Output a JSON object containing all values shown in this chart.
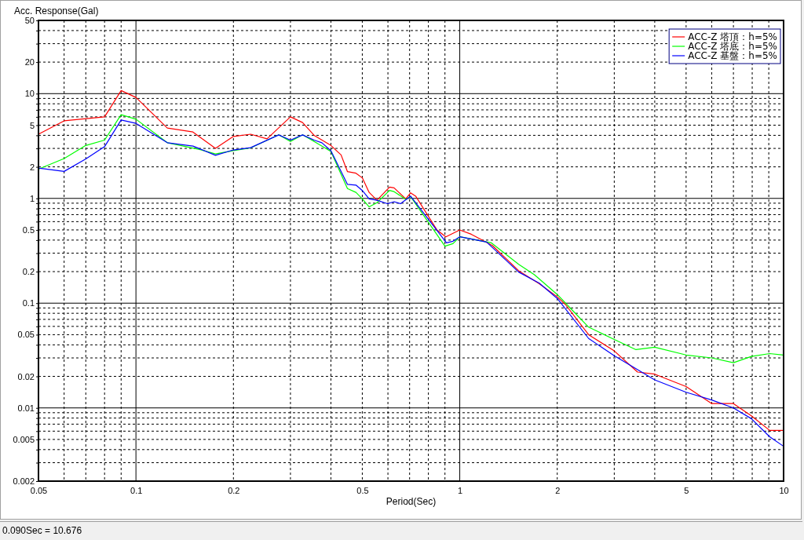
{
  "chart_data": {
    "type": "line",
    "xlabel": "Period(Sec)",
    "ylabel": "Acc. Response(Gal)",
    "log": "xy",
    "grid": true,
    "legend": "top right",
    "xlim": [
      0.05,
      10
    ],
    "ylim": [
      0.002,
      50
    ],
    "xticks": [
      0.05,
      {
        "value": 0.06,
        "label": null
      },
      {
        "value": 0.07,
        "label": null
      },
      {
        "value": 0.08,
        "label": null
      },
      {
        "value": 0.09,
        "label": null
      },
      0.1,
      0.2,
      {
        "value": 0.3,
        "label": null
      },
      {
        "value": 0.4,
        "label": null
      },
      0.5,
      {
        "value": 0.6,
        "label": null
      },
      {
        "value": 0.7,
        "label": null
      },
      {
        "value": 0.8,
        "label": null
      },
      {
        "value": 0.9,
        "label": null
      },
      1,
      2,
      {
        "value": 3,
        "label": null
      },
      {
        "value": 4,
        "label": null
      },
      5,
      {
        "value": 6,
        "label": null
      },
      {
        "value": 7,
        "label": null
      },
      {
        "value": 8,
        "label": null
      },
      {
        "value": 9,
        "label": null
      },
      10
    ],
    "yticks": [
      0.002,
      {
        "value": 0.003,
        "label": null
      },
      {
        "value": 0.004,
        "label": null
      },
      0.005,
      {
        "value": 0.006,
        "label": null
      },
      {
        "value": 0.007,
        "label": null
      },
      {
        "value": 0.008,
        "label": null
      },
      {
        "value": 0.009,
        "label": null
      },
      0.01,
      0.02,
      {
        "value": 0.03,
        "label": null
      },
      {
        "value": 0.04,
        "label": null
      },
      0.05,
      {
        "value": 0.06,
        "label": null
      },
      {
        "value": 0.07,
        "label": null
      },
      {
        "value": 0.08,
        "label": null
      },
      {
        "value": 0.09,
        "label": null
      },
      0.1,
      0.2,
      {
        "value": 0.3,
        "label": null
      },
      {
        "value": 0.4,
        "label": null
      },
      0.5,
      {
        "value": 0.6,
        "label": null
      },
      {
        "value": 0.7,
        "label": null
      },
      {
        "value": 0.8,
        "label": null
      },
      {
        "value": 0.9,
        "label": null
      },
      1,
      2,
      {
        "value": 3,
        "label": null
      },
      {
        "value": 4,
        "label": null
      },
      5,
      {
        "value": 6,
        "label": null
      },
      {
        "value": 7,
        "label": null
      },
      {
        "value": 8,
        "label": null
      },
      {
        "value": 9,
        "label": null
      },
      10,
      20,
      {
        "value": 30,
        "label": null
      },
      {
        "value": 40,
        "label": null
      },
      50
    ],
    "series": [
      {
        "name": "ACC-Z 塔頂：h=5%",
        "color": "#ff0000",
        "x": [
          0.05,
          0.06,
          0.08,
          0.09,
          0.1,
          0.125,
          0.15,
          0.176,
          0.2,
          0.226,
          0.254,
          0.3,
          0.327,
          0.355,
          0.4,
          0.43,
          0.45,
          0.478,
          0.5,
          0.525,
          0.555,
          0.607,
          0.627,
          0.681,
          0.705,
          0.731,
          0.85,
          0.906,
          1.0,
          1.085,
          1.19,
          1.26,
          1.52,
          1.76,
          2.0,
          2.12,
          2.5,
          3.0,
          3.54,
          4.0,
          5.0,
          6.0,
          7.0,
          7.95,
          9.06,
          10
        ],
        "values": [
          4.1,
          5.5,
          6.0,
          10.7,
          9.2,
          4.7,
          4.3,
          3.0,
          3.9,
          4.1,
          3.7,
          6.0,
          5.3,
          4.0,
          3.2,
          2.6,
          1.8,
          1.74,
          1.57,
          1.14,
          0.96,
          1.28,
          1.26,
          0.99,
          1.13,
          1.05,
          0.5,
          0.43,
          0.5,
          0.455,
          0.39,
          0.355,
          0.204,
          0.153,
          0.115,
          0.097,
          0.05,
          0.035,
          0.022,
          0.021,
          0.016,
          0.011,
          0.011,
          0.0084,
          0.0061,
          0.0061
        ]
      },
      {
        "name": "ACC-Z 塔底：h=5%",
        "color": "#00ff00",
        "x": [
          0.05,
          0.06,
          0.07,
          0.08,
          0.09,
          0.1,
          0.125,
          0.156,
          0.176,
          0.2,
          0.226,
          0.276,
          0.3,
          0.327,
          0.355,
          0.4,
          0.45,
          0.478,
          0.5,
          0.525,
          0.555,
          0.607,
          0.627,
          0.681,
          0.705,
          0.9,
          0.953,
          1.0,
          1.25,
          1.52,
          1.7,
          2.0,
          2.2,
          2.5,
          3.0,
          3.5,
          4.0,
          5.0,
          6.0,
          7.0,
          7.95,
          9.06,
          10
        ],
        "values": [
          1.9,
          2.4,
          3.2,
          3.6,
          6.3,
          5.7,
          3.4,
          2.95,
          2.66,
          2.86,
          3.03,
          4.04,
          3.5,
          4.04,
          3.5,
          2.8,
          1.24,
          1.14,
          0.99,
          0.83,
          0.91,
          1.19,
          1.16,
          0.98,
          1.04,
          0.35,
          0.37,
          0.43,
          0.377,
          0.235,
          0.187,
          0.121,
          0.089,
          0.059,
          0.045,
          0.036,
          0.038,
          0.032,
          0.03,
          0.027,
          0.031,
          0.033,
          0.032
        ]
      },
      {
        "name": "ACC-Z 基盤：h=5%",
        "color": "#0000ff",
        "x": [
          0.05,
          0.06,
          0.07,
          0.08,
          0.09,
          0.1,
          0.125,
          0.15,
          0.176,
          0.2,
          0.226,
          0.276,
          0.3,
          0.327,
          0.355,
          0.375,
          0.4,
          0.45,
          0.478,
          0.5,
          0.525,
          0.555,
          0.598,
          0.627,
          0.656,
          0.705,
          0.91,
          0.953,
          1.0,
          1.21,
          1.52,
          1.76,
          2.0,
          2.5,
          3.0,
          4.0,
          5.0,
          6.0,
          7.0,
          7.95,
          9.06,
          10
        ],
        "values": [
          1.95,
          1.81,
          2.38,
          3.12,
          5.6,
          5.2,
          3.4,
          3.16,
          2.58,
          2.9,
          3.05,
          4.04,
          3.6,
          4.04,
          3.6,
          3.4,
          2.85,
          1.36,
          1.34,
          1.19,
          0.99,
          0.96,
          0.89,
          0.93,
          0.89,
          1.05,
          0.377,
          0.39,
          0.43,
          0.383,
          0.198,
          0.155,
          0.111,
          0.046,
          0.0315,
          0.0185,
          0.0141,
          0.0119,
          0.01,
          0.0079,
          0.0053,
          0.0043
        ]
      }
    ],
    "annotations": [
      "0.090Sec = 10.676"
    ]
  }
}
